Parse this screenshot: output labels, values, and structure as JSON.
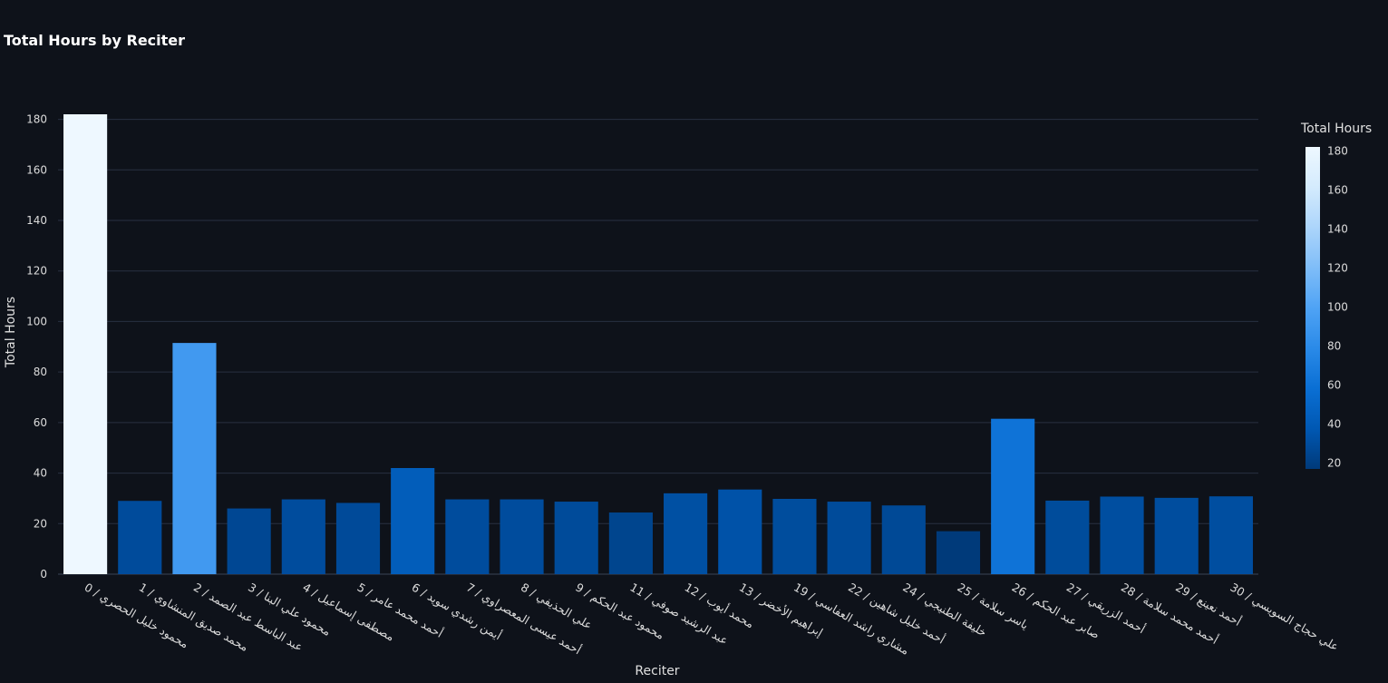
{
  "chart_data": {
    "type": "bar",
    "title": "Total Hours by Reciter",
    "xlabel": "Reciter",
    "ylabel": "Total Hours",
    "ylim": [
      0,
      182
    ],
    "yticks": [
      0,
      20,
      40,
      60,
      80,
      100,
      120,
      140,
      160,
      180
    ],
    "grid": true,
    "categories": [
      "0 / محمود خليل الحصري",
      "1 / محمد صديق المنشاوي",
      "2 / عبد الباسط عبد الصمد",
      "3 / محمود علي البنا",
      "4 / مصطفى إسماعيل",
      "5 / أحمد محمد عامر",
      "6 / أيمن رشدي سويد",
      "7 / أحمد عيسى المعصراوي",
      "8 / علي الحذيفي",
      "9 / محمود عبد الحكم",
      "11 / عبد الرشيد صوفي",
      "12 / محمد أيوب",
      "13 / إبراهيم الأخضر",
      "19 / مشاري راشد العفاسي",
      "22 / أحمد خليل شاهين",
      "24 / خليفة الطنيجي",
      "25 / ياسر سلامة",
      "26 / صابر عبد الحكم",
      "27 / أحمد الزريقي",
      "28 / أحمد محمد سلامة",
      "29 / أحمد نعينع",
      "30 / علي حجاج السويسي"
    ],
    "values": [
      182,
      29,
      91.5,
      26,
      29.6,
      28.2,
      42,
      29.6,
      29.6,
      28.7,
      24.4,
      32,
      33.5,
      29.8,
      28.7,
      27.2,
      17,
      61.5,
      29.1,
      30.7,
      30.2,
      30.8
    ],
    "colorbar": {
      "title": "Total Hours",
      "min": 17,
      "max": 182,
      "ticks": [
        20,
        40,
        60,
        80,
        100,
        120,
        140,
        160,
        180
      ],
      "colors": [
        "#003a7a",
        "#0058b3",
        "#0a6fd4",
        "#2a8ae8",
        "#4fa3f5",
        "#7fbdf8",
        "#acd5fb",
        "#d4ebfd",
        "#eef8ff"
      ]
    }
  }
}
